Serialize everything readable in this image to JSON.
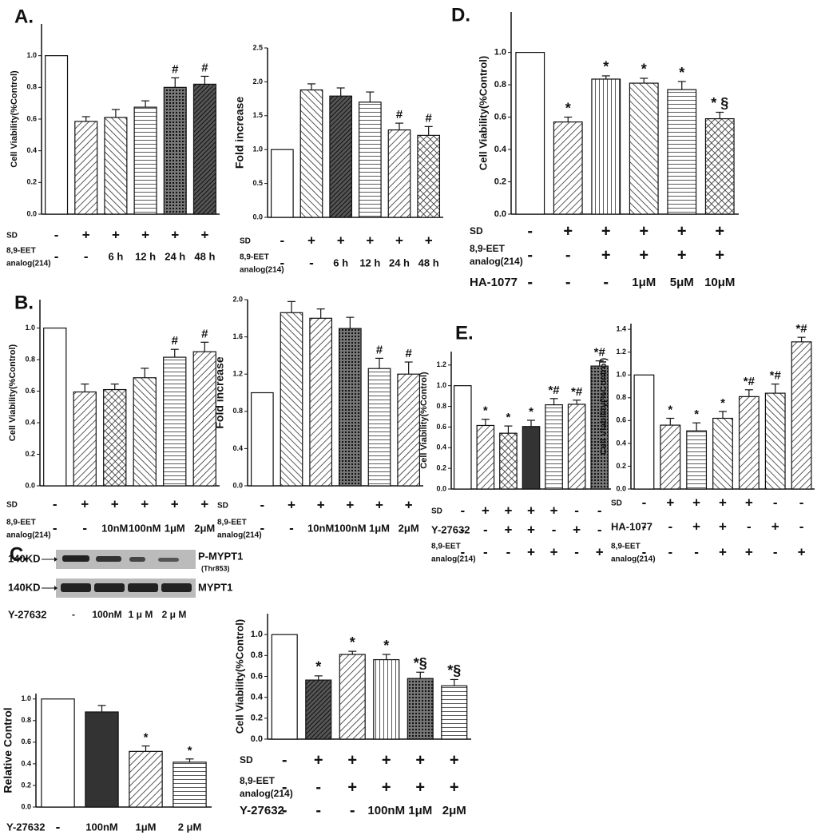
{
  "chart_data": [
    {
      "type": "bar",
      "panel": "A.",
      "ylabel": "Cell Viability(%Control)",
      "ylim": [
        0,
        1.2
      ],
      "yticks": [
        {
          "value": 0,
          "label": "0.0"
        },
        {
          "value": 0.2,
          "label": "0.2"
        },
        {
          "value": 0.4,
          "label": "0.4"
        },
        {
          "value": 0.6,
          "label": "0.6"
        },
        {
          "value": 0.8,
          "label": "0.8"
        },
        {
          "value": 1,
          "label": "1.0"
        }
      ],
      "values": [
        1.0,
        0.585,
        0.61,
        0.675,
        0.8,
        0.82
      ],
      "errors": [
        null,
        0.03,
        0.05,
        0.04,
        0.06,
        0.05
      ],
      "markers": [
        null,
        null,
        null,
        null,
        "#",
        "#"
      ],
      "styles": [
        "white",
        "diag",
        "diag2",
        "hline",
        "dots",
        "darkdiag"
      ],
      "conditions": [
        {
          "label": [
            "SD"
          ],
          "marks": [
            "-",
            "+",
            "+",
            "+",
            "+",
            "+"
          ]
        },
        {
          "label": [
            "8,9-EET",
            "analog(214)"
          ],
          "marks": [
            "-",
            "-",
            "6 h",
            "12 h",
            "24 h",
            "48 h"
          ]
        }
      ]
    },
    {
      "type": "bar",
      "ylabel": "Fold increase",
      "ylim": [
        0,
        2.5
      ],
      "yticks": [
        {
          "value": 0,
          "label": "0.0"
        },
        {
          "value": 0.5,
          "label": "0.5"
        },
        {
          "value": 1,
          "label": "1.0"
        },
        {
          "value": 1.5,
          "label": "1.5"
        },
        {
          "value": 2,
          "label": "2.0"
        },
        {
          "value": 2.5,
          "label": "2.5"
        }
      ],
      "values": [
        1.0,
        1.88,
        1.79,
        1.7,
        1.29,
        1.21
      ],
      "errors": [
        null,
        0.09,
        0.12,
        0.15,
        0.1,
        0.13
      ],
      "markers": [
        null,
        null,
        null,
        null,
        "#",
        "#"
      ],
      "styles": [
        "white",
        "diag2",
        "darkdiag",
        "hline",
        "diag",
        "cross"
      ],
      "conditions": [
        {
          "label": [
            "SD"
          ],
          "marks": [
            "-",
            "+",
            "+",
            "+",
            "+",
            "+"
          ]
        },
        {
          "label": [
            "8,9-EET",
            "analog(214)"
          ],
          "marks": [
            "-",
            "-",
            "6 h",
            "12 h",
            "24 h",
            "48 h"
          ]
        }
      ]
    },
    {
      "type": "bar",
      "panel": "D.",
      "ylabel": "Cell Viability(%Control)",
      "ylim": [
        0,
        1.25
      ],
      "yticks": [
        {
          "value": 0,
          "label": "0.0"
        },
        {
          "value": 0.2,
          "label": "0.2"
        },
        {
          "value": 0.4,
          "label": "0.4"
        },
        {
          "value": 0.6,
          "label": "0.6"
        },
        {
          "value": 0.8,
          "label": "0.8"
        },
        {
          "value": 1,
          "label": "1.0"
        }
      ],
      "values": [
        1.0,
        0.57,
        0.835,
        0.81,
        0.77,
        0.59
      ],
      "errors": [
        null,
        0.03,
        0.02,
        0.03,
        0.05,
        0.04
      ],
      "markers": [
        null,
        "*",
        "*",
        "*",
        "*",
        "* §"
      ],
      "styles": [
        "white",
        "diag",
        "vline",
        "diag2",
        "hline",
        "cross"
      ],
      "conditions": [
        {
          "label": [
            "SD"
          ],
          "marks": [
            "-",
            "+",
            "+",
            "+",
            "+",
            "+"
          ]
        },
        {
          "label": [
            "8,9-EET",
            "analog(214)"
          ],
          "marks": [
            "-",
            "-",
            "+",
            "+",
            "+",
            "+"
          ]
        },
        {
          "label": [
            "HA-1077"
          ],
          "marks": [
            "-",
            "-",
            "-",
            "1μM",
            "5μM",
            "10μM"
          ]
        }
      ]
    },
    {
      "type": "bar",
      "panel": "B.",
      "ylabel": "Cell Viability(%Control)",
      "ylim": [
        0,
        1.18
      ],
      "yticks": [
        {
          "value": 0,
          "label": "0.0"
        },
        {
          "value": 0.2,
          "label": "0.2"
        },
        {
          "value": 0.4,
          "label": "0.4"
        },
        {
          "value": 0.6,
          "label": "0.6"
        },
        {
          "value": 0.8,
          "label": "0.8"
        },
        {
          "value": 1,
          "label": "1.0"
        }
      ],
      "values": [
        1.0,
        0.595,
        0.61,
        0.685,
        0.815,
        0.85
      ],
      "errors": [
        null,
        0.05,
        0.035,
        0.06,
        0.05,
        0.06
      ],
      "markers": [
        null,
        null,
        null,
        null,
        "#",
        "#"
      ],
      "styles": [
        "white",
        "diag",
        "cross",
        "diag2",
        "hline",
        "diag"
      ],
      "conditions": [
        {
          "label": [
            "SD"
          ],
          "marks": [
            "-",
            "+",
            "+",
            "+",
            "+",
            "+"
          ]
        },
        {
          "label": [
            "8,9-EET",
            "analog(214)"
          ],
          "marks": [
            "-",
            "-",
            "10nM",
            "100nM",
            "1μM",
            "2μM"
          ]
        }
      ]
    },
    {
      "type": "bar",
      "ylabel": "Fold increase",
      "ylim": [
        0,
        2.0
      ],
      "yticks": [
        {
          "value": 0,
          "label": "0.0"
        },
        {
          "value": 0.4,
          "label": "0.4"
        },
        {
          "value": 0.8,
          "label": "0.8"
        },
        {
          "value": 1.2,
          "label": "1.2"
        },
        {
          "value": 1.6,
          "label": "1.6"
        },
        {
          "value": 2,
          "label": "2.0"
        }
      ],
      "values": [
        1.0,
        1.86,
        1.8,
        1.69,
        1.26,
        1.2
      ],
      "errors": [
        null,
        0.12,
        0.1,
        0.12,
        0.11,
        0.13
      ],
      "markers": [
        null,
        null,
        null,
        null,
        "#",
        "#"
      ],
      "styles": [
        "white",
        "diag2",
        "diag",
        "dots",
        "hline",
        "diag"
      ],
      "conditions": [
        {
          "label": [
            "SD"
          ],
          "marks": [
            "-",
            "+",
            "+",
            "+",
            "+",
            "+"
          ]
        },
        {
          "label": [
            "8,9-EET",
            "analog(214)"
          ],
          "marks": [
            "-",
            "-",
            "10nM",
            "100nM",
            "1μM",
            "2μM"
          ]
        }
      ]
    },
    {
      "type": "bar",
      "panel": "E.",
      "ylabel": "Cell Viability(%Control)",
      "ylim": [
        0,
        1.33
      ],
      "yticks": [
        {
          "value": 0,
          "label": "0.0"
        },
        {
          "value": 0.2,
          "label": "0.2"
        },
        {
          "value": 0.4,
          "label": "0.4"
        },
        {
          "value": 0.6,
          "label": "0.6"
        },
        {
          "value": 0.8,
          "label": "0.8"
        },
        {
          "value": 1,
          "label": "1.0"
        },
        {
          "value": 1.2,
          "label": "1.2"
        }
      ],
      "values": [
        1.0,
        0.615,
        0.54,
        0.605,
        0.815,
        0.82,
        1.19
      ],
      "errors": [
        null,
        0.06,
        0.07,
        0.06,
        0.06,
        0.04,
        0.05
      ],
      "markers": [
        null,
        "*",
        "*",
        "*",
        "*#",
        "*#",
        "*#"
      ],
      "styles": [
        "white",
        "diag",
        "cross",
        "dark",
        "hline",
        "diag",
        "dots"
      ],
      "conditions": [
        {
          "label": [
            "SD"
          ],
          "marks": [
            "-",
            "+",
            "+",
            "+",
            "+",
            "-",
            "-"
          ]
        },
        {
          "label": [
            "Y-27632"
          ],
          "marks": [
            "-",
            "-",
            "+",
            "+",
            "-",
            "+",
            "-"
          ]
        },
        {
          "label": [
            "8,9-EET",
            "analog(214)"
          ],
          "marks": [
            "-",
            "-",
            "-",
            "+",
            "+",
            "-",
            "+"
          ]
        }
      ]
    },
    {
      "type": "bar",
      "ylabel": "Cell Viability(%Control)",
      "ylim": [
        0,
        1.45
      ],
      "yticks": [
        {
          "value": 0,
          "label": "0.0"
        },
        {
          "value": 0.2,
          "label": "0.2"
        },
        {
          "value": 0.4,
          "label": "0.4"
        },
        {
          "value": 0.6,
          "label": "0.6"
        },
        {
          "value": 0.8,
          "label": "0.8"
        },
        {
          "value": 1,
          "label": "1.0"
        },
        {
          "value": 1.2,
          "label": "1.2"
        },
        {
          "value": 1.4,
          "label": "1.4"
        }
      ],
      "values": [
        1.0,
        0.56,
        0.51,
        0.62,
        0.81,
        0.84,
        1.29
      ],
      "errors": [
        null,
        0.06,
        0.07,
        0.06,
        0.06,
        0.08,
        0.04
      ],
      "markers": [
        null,
        "*",
        "*",
        "*",
        "*#",
        "*#",
        "*#"
      ],
      "styles": [
        "white",
        "diag",
        "hline",
        "diag2",
        "diag",
        "diag2",
        "diag"
      ],
      "conditions": [
        {
          "label": [
            "SD"
          ],
          "marks": [
            "-",
            "+",
            "+",
            "+",
            "+",
            "-",
            "-"
          ]
        },
        {
          "label": [
            "HA-1077"
          ],
          "marks": [
            "-",
            "-",
            "+",
            "+",
            "-",
            "+",
            "-"
          ]
        },
        {
          "label": [
            "8,9-EET",
            "analog(214)"
          ],
          "marks": [
            "-",
            "-",
            "-",
            "+",
            "+",
            "-",
            "+"
          ]
        }
      ]
    },
    {
      "type": "bar",
      "panel": "C.",
      "ylabel": "Relative Control",
      "ylim": [
        0,
        1.05
      ],
      "yticks": [
        {
          "value": 0,
          "label": "0.0"
        },
        {
          "value": 0.2,
          "label": "0.2"
        },
        {
          "value": 0.4,
          "label": "0.4"
        },
        {
          "value": 0.6,
          "label": "0.6"
        },
        {
          "value": 0.8,
          "label": "0.8"
        },
        {
          "value": 1,
          "label": "1.0"
        }
      ],
      "values": [
        1.0,
        0.88,
        0.515,
        0.415
      ],
      "errors": [
        null,
        0.06,
        0.05,
        0.03
      ],
      "markers": [
        null,
        null,
        "*",
        "*"
      ],
      "styles": [
        "white",
        "dark",
        "diag",
        "hline"
      ],
      "conditions": [
        {
          "label": [
            "Y-27632"
          ],
          "marks": [
            "-",
            "100nM",
            "1μM",
            "2 μM"
          ]
        }
      ],
      "blot": {
        "rows": [
          {
            "size": "140KD",
            "name": "P-MYPT1",
            "sub": "(Thr853)"
          },
          {
            "size": "140KD",
            "name": "MYPT1"
          }
        ],
        "treatment": "Y-27632",
        "lanes": [
          "-",
          "100nM",
          "1 μ M",
          "2 μ M"
        ]
      }
    },
    {
      "type": "bar",
      "ylabel": "Cell Viability(%Control)",
      "ylim": [
        0,
        1.2
      ],
      "yticks": [
        {
          "value": 0,
          "label": "0.0"
        },
        {
          "value": 0.2,
          "label": "0.2"
        },
        {
          "value": 0.4,
          "label": "0.4"
        },
        {
          "value": 0.6,
          "label": "0.6"
        },
        {
          "value": 0.8,
          "label": "0.8"
        },
        {
          "value": 1,
          "label": "1.0"
        }
      ],
      "values": [
        1.0,
        0.565,
        0.81,
        0.76,
        0.58,
        0.51
      ],
      "errors": [
        null,
        0.04,
        0.03,
        0.05,
        0.06,
        0.06
      ],
      "markers": [
        null,
        "*",
        "*",
        "*",
        "*§",
        "*§"
      ],
      "styles": [
        "white",
        "darkdiag",
        "diag",
        "vline",
        "dots",
        "hline"
      ],
      "conditions": [
        {
          "label": [
            "SD"
          ],
          "marks": [
            "-",
            "+",
            "+",
            "+",
            "+",
            "+"
          ]
        },
        {
          "label": [
            "8,9-EET",
            "analog(214)"
          ],
          "marks": [
            "-",
            "-",
            "+",
            "+",
            "+",
            "+"
          ]
        },
        {
          "label": [
            "Y-27632"
          ],
          "marks": [
            "-",
            "-",
            "-",
            "100nM",
            "1μM",
            "2μM"
          ]
        }
      ]
    }
  ]
}
